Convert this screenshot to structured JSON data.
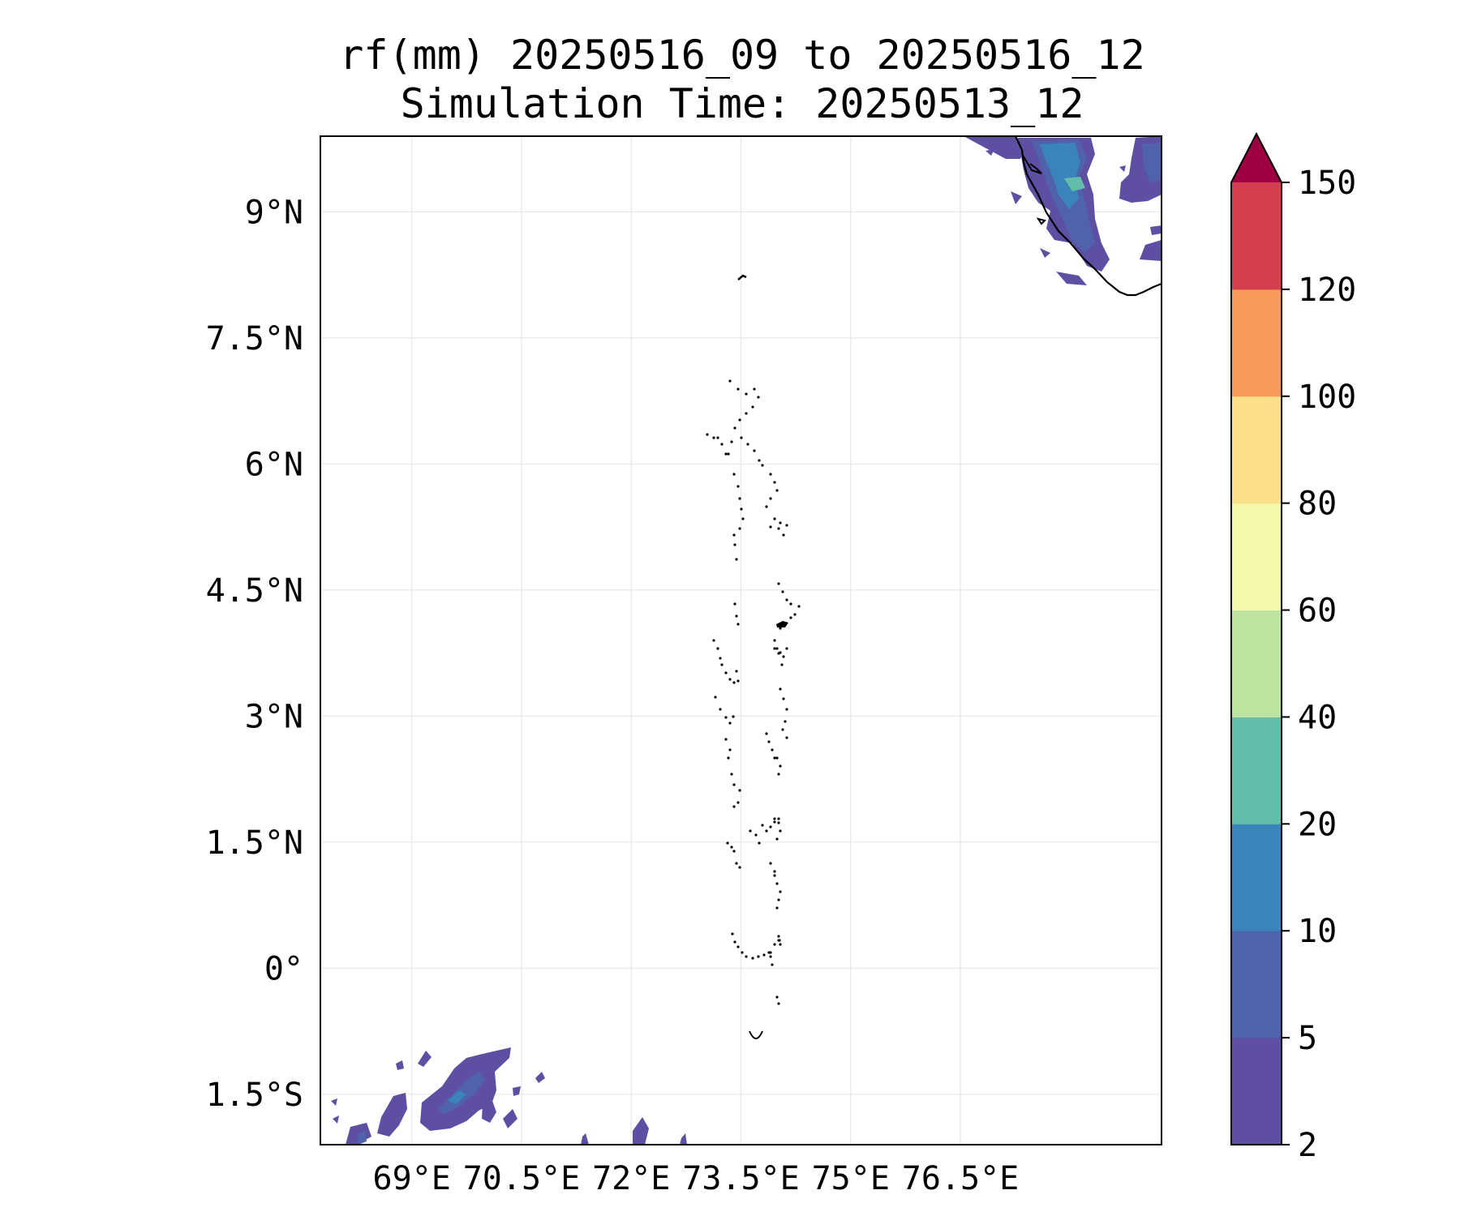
{
  "title": {
    "line1": "rf(mm) 20250516_09 to 20250516_12",
    "line2": "Simulation Time: 20250513_12"
  },
  "map": {
    "type": "contourf-map",
    "lon_range": [
      67.75,
      79.25
    ],
    "lat_range": [
      -2.1,
      9.9
    ],
    "lon_ticks": [
      {
        "value": 69,
        "label": "69°E"
      },
      {
        "value": 70.5,
        "label": "70.5°E"
      },
      {
        "value": 72,
        "label": "72°E"
      },
      {
        "value": 73.5,
        "label": "73.5°E"
      },
      {
        "value": 75,
        "label": "75°E"
      },
      {
        "value": 76.5,
        "label": "76.5°E"
      }
    ],
    "lat_ticks": [
      {
        "value": 9,
        "label": "9°N"
      },
      {
        "value": 7.5,
        "label": "7.5°N"
      },
      {
        "value": 6,
        "label": "6°N"
      },
      {
        "value": 4.5,
        "label": "4.5°N"
      },
      {
        "value": 3,
        "label": "3°N"
      },
      {
        "value": 1.5,
        "label": "1.5°N"
      },
      {
        "value": 0,
        "label": "0°"
      },
      {
        "value": -1.5,
        "label": "1.5°S"
      }
    ],
    "grid": true,
    "features": [
      "coastline",
      "maldives atolls"
    ]
  },
  "colorbar": {
    "extend": "max",
    "levels": [
      {
        "label": "2",
        "color": "#5e4fa2"
      },
      {
        "label": "5",
        "color": "#4f62ab"
      },
      {
        "label": "10",
        "color": "#3a84bb"
      },
      {
        "label": "20",
        "color": "#63bea9"
      },
      {
        "label": "40",
        "color": "#bee3a0"
      },
      {
        "label": "60",
        "color": "#f2f9ab"
      },
      {
        "label": "80",
        "color": "#fcdf8b"
      },
      {
        "label": "100",
        "color": "#f89a59"
      },
      {
        "label": "120",
        "color": "#d53e4f"
      },
      {
        "label": "150",
        "color": null
      }
    ],
    "extend_color": "#9e0142"
  }
}
